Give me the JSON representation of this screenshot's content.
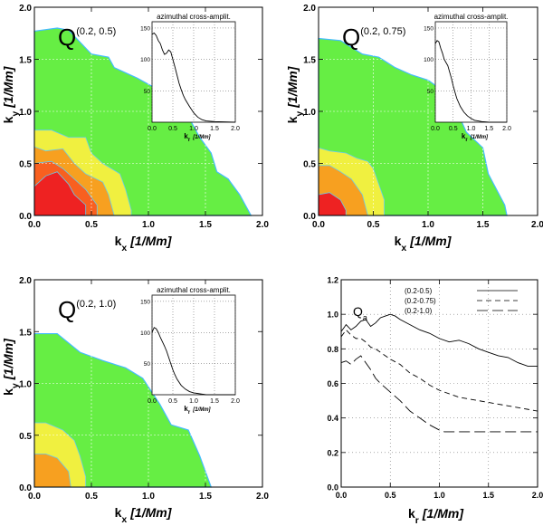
{
  "chart_data": [
    {
      "type": "heatmap",
      "panel": "top-left",
      "label_main": "Q",
      "label_sup": "(0.2, 0.5)",
      "xlabel": "k",
      "xlabel_sub": "x",
      "xlabel_unit": "[1/Mm]",
      "ylabel": "k",
      "ylabel_sub": "y",
      "ylabel_unit": "[1/Mm]",
      "xlim": [
        0,
        2
      ],
      "ylim": [
        0,
        2
      ],
      "xticks": [
        "0.0",
        "0.5",
        "1.0",
        "1.5",
        "2.0"
      ],
      "yticks": [
        "0.0",
        "0.5",
        "1.0",
        "1.5",
        "2.0"
      ],
      "levels": [
        {
          "color": "#66ee44",
          "outline": [
            [
              0,
              1.77
            ],
            [
              0.2,
              1.8
            ],
            [
              0.3,
              1.78
            ],
            [
              0.5,
              1.55
            ],
            [
              0.65,
              1.52
            ],
            [
              0.7,
              1.42
            ],
            [
              0.9,
              1.32
            ],
            [
              1.1,
              1.2
            ],
            [
              1.3,
              1.05
            ],
            [
              1.45,
              0.75
            ],
            [
              1.55,
              0.6
            ],
            [
              1.6,
              0.42
            ],
            [
              1.7,
              0.35
            ],
            [
              1.8,
              0.2
            ],
            [
              1.85,
              0.1
            ],
            [
              1.9,
              0.0
            ],
            [
              0,
              0
            ]
          ]
        },
        {
          "color": "#f0f040",
          "outline": [
            [
              0,
              0.82
            ],
            [
              0.15,
              0.82
            ],
            [
              0.3,
              0.75
            ],
            [
              0.45,
              0.75
            ],
            [
              0.5,
              0.6
            ],
            [
              0.6,
              0.5
            ],
            [
              0.75,
              0.4
            ],
            [
              0.8,
              0.25
            ],
            [
              0.85,
              0.05
            ],
            [
              0.85,
              0
            ],
            [
              0,
              0
            ]
          ]
        },
        {
          "color": "#f7a020",
          "outline": [
            [
              0,
              0.66
            ],
            [
              0.1,
              0.62
            ],
            [
              0.25,
              0.64
            ],
            [
              0.35,
              0.5
            ],
            [
              0.45,
              0.4
            ],
            [
              0.6,
              0.32
            ],
            [
              0.65,
              0.2
            ],
            [
              0.7,
              0
            ],
            [
              0,
              0
            ]
          ]
        },
        {
          "color": "#f86020",
          "outline": [
            [
              0,
              0.5
            ],
            [
              0.15,
              0.52
            ],
            [
              0.25,
              0.45
            ],
            [
              0.35,
              0.35
            ],
            [
              0.45,
              0.25
            ],
            [
              0.55,
              0.1
            ],
            [
              0.55,
              0
            ],
            [
              0,
              0
            ]
          ]
        },
        {
          "color": "#ee2222",
          "outline": [
            [
              0,
              0.28
            ],
            [
              0.1,
              0.38
            ],
            [
              0.2,
              0.42
            ],
            [
              0.3,
              0.3
            ],
            [
              0.35,
              0.2
            ],
            [
              0.45,
              0.1
            ],
            [
              0.45,
              0
            ],
            [
              0,
              0
            ]
          ]
        }
      ],
      "inset": {
        "type": "line",
        "title": "azimuthal cross-amplit.",
        "xlabel": "k",
        "xlabel_sub": "r",
        "xlabel_unit": "[1/Mm]",
        "xlim": [
          0,
          2
        ],
        "ylim": [
          0,
          160
        ],
        "xticks": [
          "0.0",
          "0.5",
          "1.0",
          "1.5",
          "2.0"
        ],
        "yticks": [
          "50",
          "100",
          "150"
        ],
        "x": [
          0,
          0.05,
          0.1,
          0.15,
          0.2,
          0.25,
          0.3,
          0.35,
          0.4,
          0.45,
          0.5,
          0.55,
          0.6,
          0.65,
          0.7,
          0.75,
          0.8,
          0.9,
          1.0,
          1.1,
          1.2,
          1.3,
          1.5,
          2.0
        ],
        "y": [
          140,
          142,
          138,
          130,
          125,
          115,
          108,
          110,
          115,
          112,
          100,
          88,
          75,
          62,
          52,
          43,
          36,
          25,
          15,
          8,
          4,
          2,
          1,
          0
        ]
      }
    },
    {
      "type": "heatmap",
      "panel": "top-right",
      "label_main": "Q",
      "label_sup": "(0.2, 0.75)",
      "xlabel": "k",
      "xlabel_sub": "x",
      "xlabel_unit": "[1/Mm]",
      "ylabel": "k",
      "ylabel_sub": "y",
      "ylabel_unit": "[1/Mm]",
      "xlim": [
        0,
        2
      ],
      "ylim": [
        0,
        2
      ],
      "xticks": [
        "0.0",
        "0.5",
        "1.0",
        "1.5",
        "2.0"
      ],
      "yticks": [
        "0.0",
        "0.5",
        "1.0",
        "1.5",
        "2.0"
      ],
      "levels": [
        {
          "color": "#66ee44",
          "outline": [
            [
              0,
              1.7
            ],
            [
              0.2,
              1.68
            ],
            [
              0.4,
              1.55
            ],
            [
              0.55,
              1.52
            ],
            [
              0.7,
              1.42
            ],
            [
              0.85,
              1.35
            ],
            [
              1.0,
              1.3
            ],
            [
              1.2,
              1.15
            ],
            [
              1.35,
              0.8
            ],
            [
              1.5,
              0.65
            ],
            [
              1.55,
              0.4
            ],
            [
              1.6,
              0.3
            ],
            [
              1.7,
              0.1
            ],
            [
              1.72,
              0.0
            ],
            [
              0,
              0
            ]
          ]
        },
        {
          "color": "#f0f040",
          "outline": [
            [
              0,
              0.65
            ],
            [
              0.1,
              0.62
            ],
            [
              0.25,
              0.6
            ],
            [
              0.35,
              0.55
            ],
            [
              0.45,
              0.52
            ],
            [
              0.5,
              0.45
            ],
            [
              0.55,
              0.3
            ],
            [
              0.6,
              0.15
            ],
            [
              0.6,
              0
            ],
            [
              0,
              0
            ]
          ]
        },
        {
          "color": "#f7a020",
          "outline": [
            [
              0,
              0.48
            ],
            [
              0.1,
              0.48
            ],
            [
              0.2,
              0.42
            ],
            [
              0.3,
              0.35
            ],
            [
              0.4,
              0.2
            ],
            [
              0.45,
              0
            ],
            [
              0,
              0
            ]
          ]
        },
        {
          "color": "#ee2222",
          "outline": [
            [
              0,
              0.2
            ],
            [
              0.1,
              0.22
            ],
            [
              0.2,
              0.15
            ],
            [
              0.25,
              0.05
            ],
            [
              0.25,
              0
            ],
            [
              0,
              0
            ]
          ]
        }
      ],
      "inset": {
        "type": "line",
        "title": "azimuthal cross-amplit.",
        "xlabel": "k",
        "xlabel_sub": "r",
        "xlabel_unit": "[1/Mm]",
        "xlim": [
          0,
          2
        ],
        "ylim": [
          0,
          160
        ],
        "xticks": [
          "0.0",
          "0.5",
          "1.0",
          "1.5",
          "2.0"
        ],
        "yticks": [
          "50",
          "100",
          "150"
        ],
        "x": [
          0,
          0.05,
          0.1,
          0.15,
          0.2,
          0.25,
          0.3,
          0.35,
          0.4,
          0.45,
          0.5,
          0.55,
          0.6,
          0.7,
          0.8,
          0.9,
          1.0,
          1.1,
          1.2,
          1.3,
          1.5,
          2.0
        ],
        "y": [
          125,
          130,
          128,
          118,
          110,
          100,
          95,
          90,
          80,
          70,
          58,
          48,
          38,
          25,
          16,
          10,
          6,
          3,
          2,
          1,
          0,
          0
        ]
      }
    },
    {
      "type": "heatmap",
      "panel": "bottom-left",
      "label_main": "Q",
      "label_sup": "(0.2, 1.0)",
      "xlabel": "k",
      "xlabel_sub": "x",
      "xlabel_unit": "[1/Mm]",
      "ylabel": "k",
      "ylabel_sub": "y",
      "ylabel_unit": "[1/Mm]",
      "xlim": [
        0,
        2
      ],
      "ylim": [
        0,
        2
      ],
      "xticks": [
        "0.0",
        "0.5",
        "1.0",
        "1.5",
        "2.0"
      ],
      "yticks": [
        "0.0",
        "0.5",
        "1.0",
        "1.5",
        "2.0"
      ],
      "levels": [
        {
          "color": "#66ee44",
          "outline": [
            [
              0,
              1.48
            ],
            [
              0.2,
              1.48
            ],
            [
              0.4,
              1.3
            ],
            [
              0.6,
              1.22
            ],
            [
              0.8,
              1.15
            ],
            [
              0.95,
              1.05
            ],
            [
              1.1,
              0.8
            ],
            [
              1.2,
              0.6
            ],
            [
              1.35,
              0.55
            ],
            [
              1.45,
              0.3
            ],
            [
              1.5,
              0.15
            ],
            [
              1.55,
              0.0
            ],
            [
              0,
              0
            ]
          ]
        },
        {
          "color": "#f0f040",
          "outline": [
            [
              0,
              0.62
            ],
            [
              0.1,
              0.62
            ],
            [
              0.25,
              0.55
            ],
            [
              0.35,
              0.45
            ],
            [
              0.4,
              0.3
            ],
            [
              0.45,
              0.1
            ],
            [
              0.45,
              0
            ],
            [
              0,
              0
            ]
          ]
        },
        {
          "color": "#f7a020",
          "outline": [
            [
              0,
              0.32
            ],
            [
              0.1,
              0.32
            ],
            [
              0.2,
              0.28
            ],
            [
              0.3,
              0.15
            ],
            [
              0.32,
              0
            ],
            [
              0,
              0
            ]
          ]
        }
      ],
      "inset": {
        "type": "line",
        "title": "azimuthal cross-amplit.",
        "xlabel": "k",
        "xlabel_sub": "r",
        "xlabel_unit": "[1/Mm]",
        "xlim": [
          0,
          2
        ],
        "ylim": [
          0,
          160
        ],
        "xticks": [
          "0.0",
          "0.5",
          "1.0",
          "1.5",
          "2.0"
        ],
        "yticks": [
          "50",
          "100",
          "150"
        ],
        "x": [
          0,
          0.05,
          0.1,
          0.15,
          0.2,
          0.25,
          0.3,
          0.35,
          0.4,
          0.45,
          0.5,
          0.55,
          0.6,
          0.7,
          0.8,
          0.9,
          1.0,
          1.1,
          1.2,
          1.3,
          1.5,
          2.0
        ],
        "y": [
          100,
          108,
          106,
          100,
          92,
          85,
          78,
          70,
          60,
          50,
          40,
          32,
          25,
          15,
          9,
          5,
          3,
          2,
          1,
          0,
          0,
          0
        ]
      }
    },
    {
      "type": "line",
      "panel": "bottom-right",
      "label_main": "Q",
      "label_sub": "a",
      "xlabel": "k",
      "xlabel_sub": "r",
      "xlabel_unit": "[1/Mm]",
      "xlim": [
        0,
        2
      ],
      "ylim": [
        0,
        1.2
      ],
      "xticks": [
        "0.0",
        "0.5",
        "1.0",
        "1.5",
        "2.0"
      ],
      "yticks": [
        "0.0",
        "0.2",
        "0.4",
        "0.6",
        "0.8",
        "1.0",
        "1.2"
      ],
      "legend_position": "top-right",
      "series": [
        {
          "name": "(0.2-0.5)",
          "dash": "solid",
          "x": [
            0,
            0.05,
            0.1,
            0.15,
            0.2,
            0.25,
            0.3,
            0.35,
            0.4,
            0.45,
            0.5,
            0.55,
            0.6,
            0.7,
            0.8,
            0.9,
            1.0,
            1.1,
            1.2,
            1.3,
            1.4,
            1.5,
            1.6,
            1.7,
            1.8,
            1.9,
            2.0
          ],
          "y": [
            0.9,
            0.94,
            0.91,
            0.93,
            0.96,
            0.97,
            0.93,
            0.95,
            0.98,
            0.99,
            1.0,
            0.99,
            0.97,
            0.94,
            0.91,
            0.89,
            0.86,
            0.84,
            0.85,
            0.83,
            0.8,
            0.78,
            0.76,
            0.75,
            0.72,
            0.7,
            0.7
          ]
        },
        {
          "name": "(0.2-0.75)",
          "dash": "dashed",
          "x": [
            0,
            0.05,
            0.1,
            0.15,
            0.2,
            0.25,
            0.3,
            0.35,
            0.4,
            0.5,
            0.6,
            0.7,
            0.8,
            0.9,
            1.0,
            1.1,
            1.2,
            1.3,
            1.4,
            1.5,
            1.6,
            1.7,
            1.8,
            1.9,
            2.0
          ],
          "y": [
            0.87,
            0.91,
            0.88,
            0.86,
            0.86,
            0.84,
            0.81,
            0.8,
            0.78,
            0.74,
            0.71,
            0.66,
            0.63,
            0.59,
            0.56,
            0.54,
            0.52,
            0.51,
            0.5,
            0.49,
            0.48,
            0.47,
            0.46,
            0.45,
            0.44
          ]
        },
        {
          "name": "(0.2-1.0)",
          "dash": "longdash",
          "x": [
            0,
            0.05,
            0.1,
            0.15,
            0.2,
            0.25,
            0.3,
            0.35,
            0.4,
            0.5,
            0.6,
            0.7,
            0.8,
            0.9,
            1.0,
            1.05,
            1.1,
            1.3,
            1.5,
            1.7,
            2.0
          ],
          "y": [
            0.72,
            0.73,
            0.71,
            0.74,
            0.76,
            0.72,
            0.68,
            0.63,
            0.6,
            0.55,
            0.5,
            0.44,
            0.4,
            0.36,
            0.33,
            0.32,
            0.32,
            0.32,
            0.32,
            0.32,
            0.32
          ]
        }
      ]
    }
  ]
}
